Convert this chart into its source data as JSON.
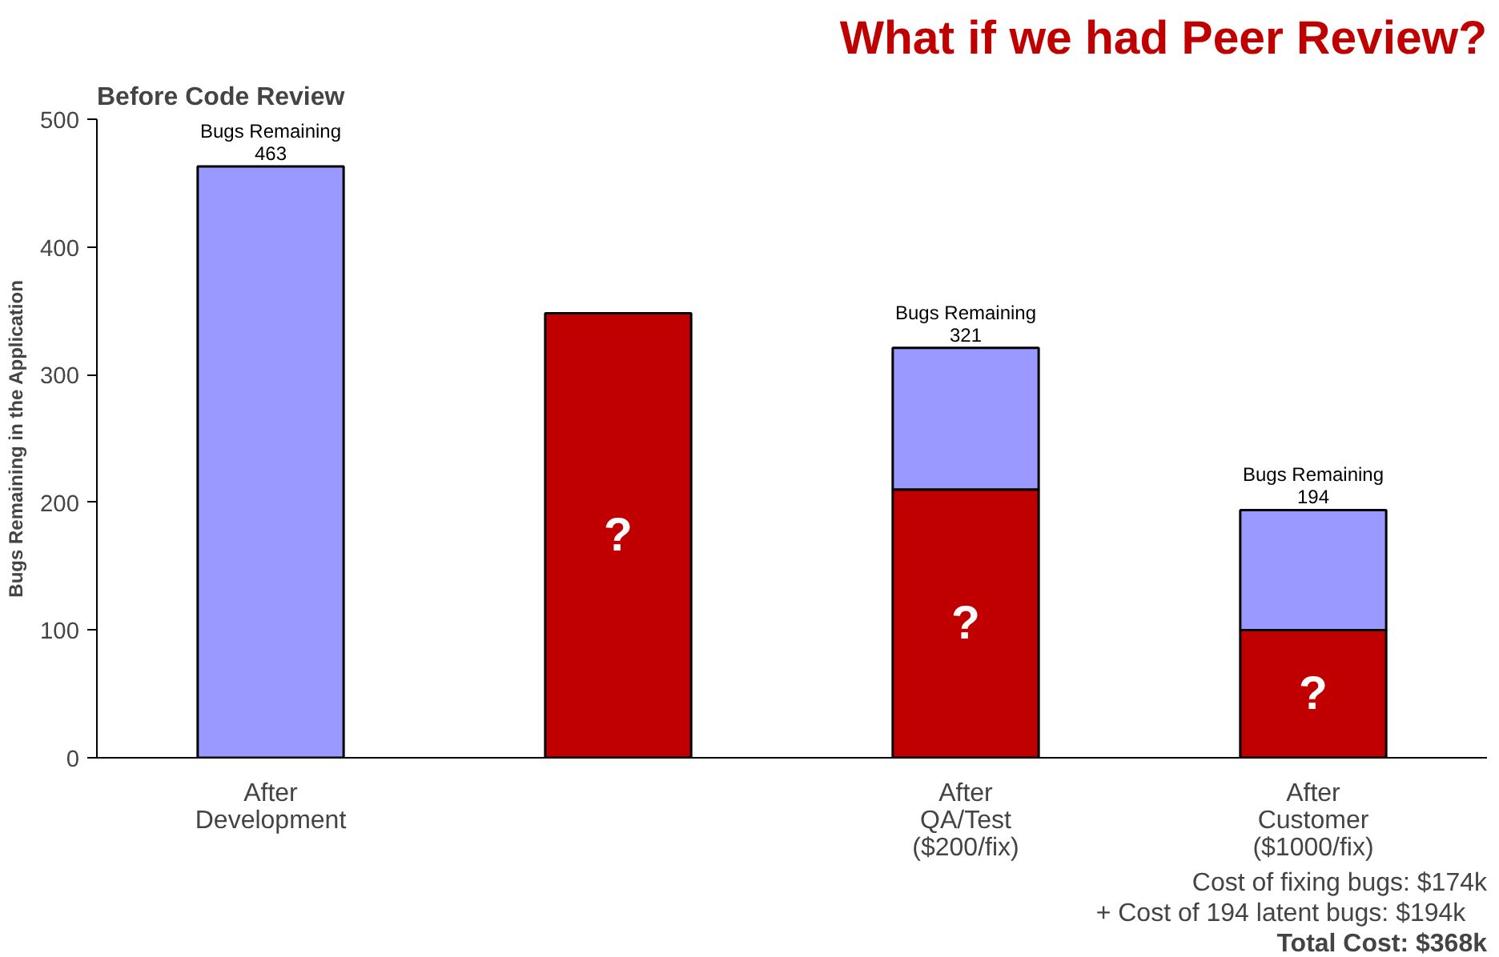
{
  "chart_data": {
    "type": "bar",
    "title": "What if we had Peer Review?",
    "subtitle": "Before Code Review",
    "ylabel": "Bugs Remaining in the Application",
    "categories": [
      "After\nDevelopment",
      null,
      "After\nQA/Test\n($200/fix)",
      "After\nCustomer\n($1000/fix)"
    ],
    "series": [
      {
        "color": "#c00000",
        "values": [
          null,
          348,
          210,
          100
        ],
        "value_labels": [
          null,
          "?",
          "?",
          "?"
        ]
      },
      {
        "color": "#9999ff",
        "values": [
          463,
          null,
          111,
          94
        ],
        "value_labels": [
          "Bugs Remaining\n463",
          null,
          "Bugs Remaining\n321",
          "Bugs Remaining\n194"
        ]
      }
    ],
    "stacked": true,
    "ylim": [
      0,
      500
    ],
    "yticks": [
      0,
      100,
      200,
      300,
      400,
      500
    ],
    "grid": false,
    "annotations": [
      "Cost of fixing bugs: $174k",
      "+    Cost of 194 latent bugs: $194k",
      "Total Cost: $368k"
    ]
  }
}
